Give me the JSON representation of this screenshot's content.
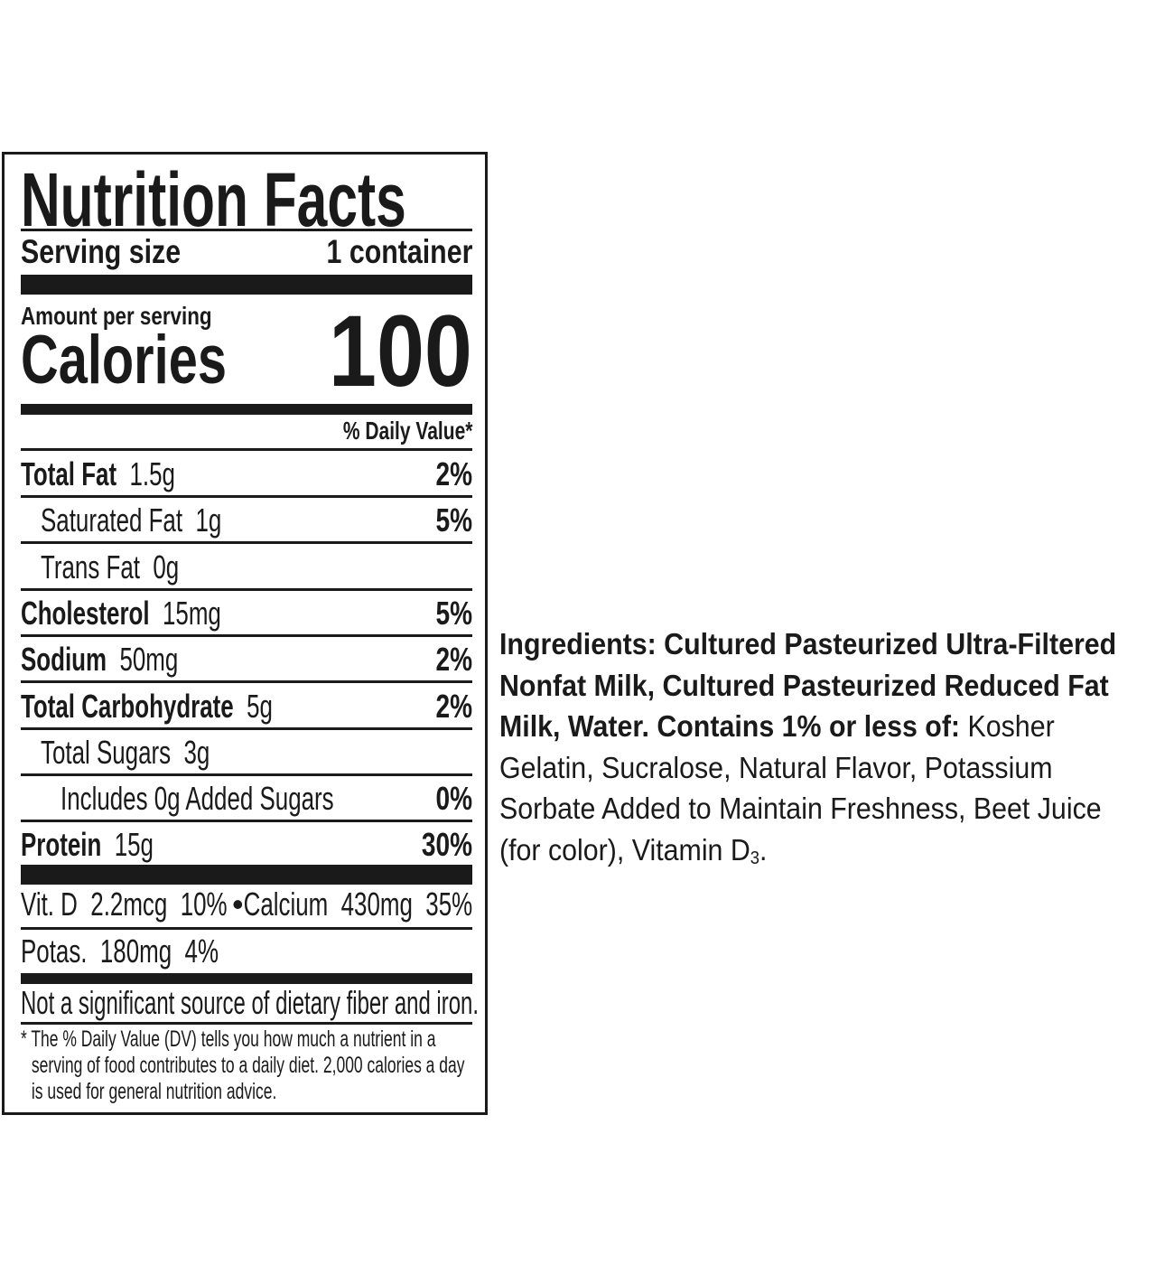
{
  "label": {
    "title": "Nutrition Facts",
    "serving_size_label": "Serving size",
    "serving_size_value": "1 container",
    "amount_per_serving": "Amount per serving",
    "calories_label": "Calories",
    "calories_value": "100",
    "daily_value_header": "% Daily Value*",
    "nutrients": [
      {
        "name": "Total Fat",
        "amount": "1.5g",
        "dv": "2%"
      },
      {
        "name": "Saturated Fat",
        "amount": "1g",
        "dv": "5%"
      },
      {
        "name": "Trans Fat",
        "amount": "0g",
        "dv": ""
      },
      {
        "name": "Cholesterol",
        "amount": "15mg",
        "dv": "5%"
      },
      {
        "name": "Sodium",
        "amount": "50mg",
        "dv": "2%"
      },
      {
        "name": "Total Carbohydrate",
        "amount": "5g",
        "dv": "2%"
      },
      {
        "name": "Total Sugars",
        "amount": "3g",
        "dv": ""
      },
      {
        "name": "Includes 0g Added Sugars",
        "amount": "",
        "dv": "0%"
      },
      {
        "name": "Protein",
        "amount": "15g",
        "dv": "30%"
      }
    ],
    "vitamins_row1_left": "Vit. D  2.2mcg  10%",
    "bullet": "•",
    "vitamins_row1_right": "Calcium  430mg  35%",
    "vitamins_row2": "Potas.  180mg  4%",
    "not_significant": "Not a significant source of dietary fiber and iron.",
    "footnote_lines": [
      "* The % Daily Value (DV) tells you how much a nutrient in a",
      "serving of food contributes to a daily diet. 2,000 calories a day",
      "is used for general nutrition advice."
    ]
  },
  "ingredients": {
    "line1_bold": "Ingredients: Cultured Pasteurized Ultra-Filtered",
    "line2_bold": "Nonfat Milk, Cultured Pasteurized Reduced Fat",
    "line3_bold": "Milk, Water. Contains 1% or less of:",
    "line3_regular": " Kosher",
    "line4": "Gelatin, Sucralose, Natural Flavor, Potassium",
    "line5": "Sorbate Added to Maintain Freshness, Beet Juice",
    "line6": "(for color), Vitamin D",
    "line6_sub": "3",
    "line6_end": "."
  }
}
